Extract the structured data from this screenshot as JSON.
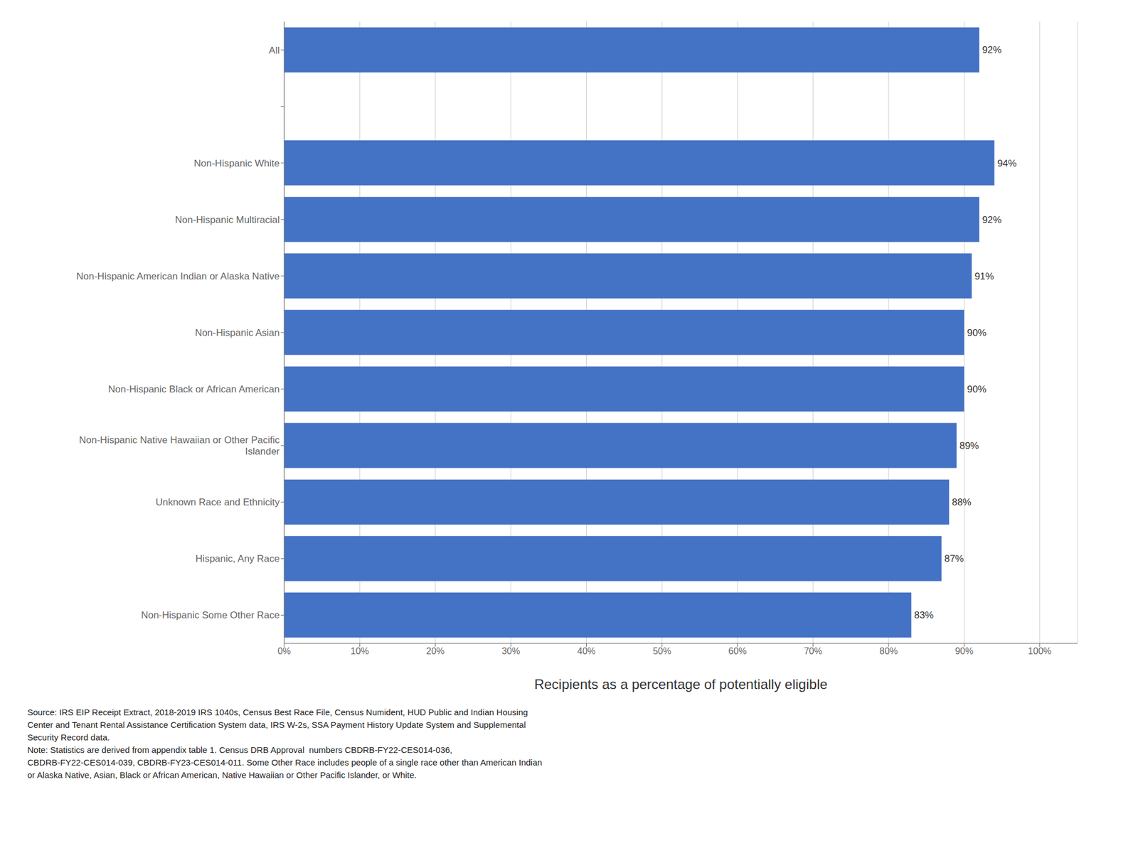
{
  "chart_data": {
    "type": "bar",
    "orientation": "horizontal",
    "categories": [
      "Non-Hispanic Some Other Race",
      "Hispanic, Any Race",
      "Unknown Race and Ethnicity",
      "Non-Hispanic Native Hawaiian or Other Pacific\nIslander",
      "Non-Hispanic Black or African American",
      "Non-Hispanic Asian",
      "Non-Hispanic American Indian or Alaska Native",
      "Non-Hispanic Multiracial",
      "Non-Hispanic White",
      null,
      "All"
    ],
    "values": [
      83,
      87,
      88,
      89,
      90,
      90,
      91,
      92,
      94,
      null,
      92
    ],
    "value_labels": [
      "83%",
      "87%",
      "88%",
      "89%",
      "90%",
      "90%",
      "91%",
      "92%",
      "94%",
      null,
      "92%"
    ],
    "data_labels": true,
    "color": "#4472C4",
    "x_label": "Recipients as a percentage of potentially eligible",
    "xlim": [
      0,
      105
    ],
    "xticks": [
      {
        "value": 0,
        "label": "0%"
      },
      {
        "value": 10,
        "label": "10%"
      },
      {
        "value": 20,
        "label": "20%"
      },
      {
        "value": 30,
        "label": "30%"
      },
      {
        "value": 40,
        "label": "40%"
      },
      {
        "value": 50,
        "label": "50%"
      },
      {
        "value": 60,
        "label": "60%"
      },
      {
        "value": 70,
        "label": "70%"
      },
      {
        "value": 80,
        "label": "80%"
      },
      {
        "value": 90,
        "label": "90%"
      },
      {
        "value": 100,
        "label": "100%"
      }
    ],
    "grid": true,
    "annotations": [
      "Source: IRS EIP Receipt Extract, 2018-2019 IRS 1040s, Census Best Race File, Census Numident, HUD Public and Indian Housing",
      "Center and Tenant Rental Assistance Certification System data, IRS W-2s, SSA Payment History Update System and Supplemental",
      "Security Record data.",
      "Note: Statistics are derived from appendix table 1. Census DRB Approval  numbers CBDRB-FY22-CES014-036,",
      "CBDRB-FY22-CES014-039, CBDRB-FY23-CES014-011. Some Other Race includes people of a single race other than American Indian",
      "or Alaska Native, Asian, Black or African American, Native Hawaiian or Other Pacific Islander, or White."
    ]
  }
}
